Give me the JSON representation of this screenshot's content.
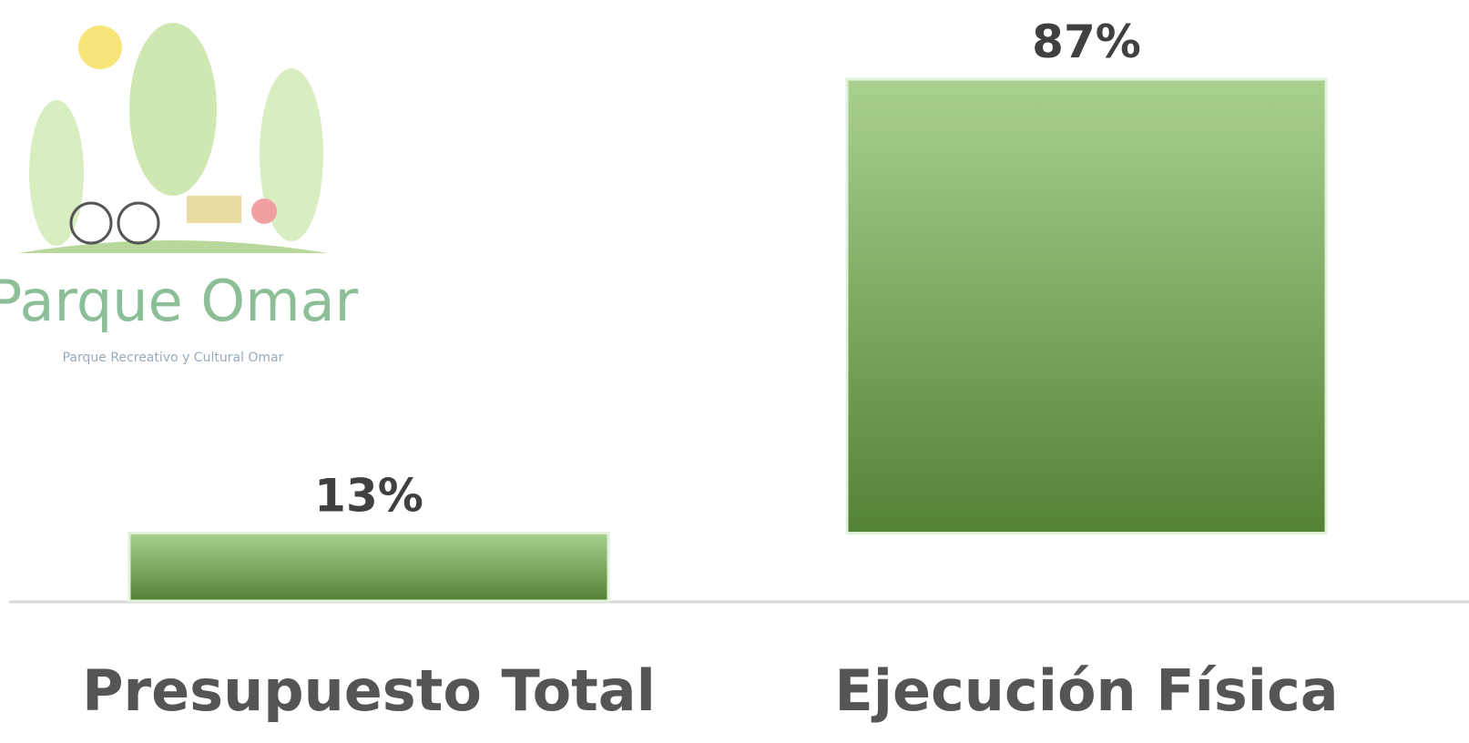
{
  "logo": {
    "title": "Parque Omar",
    "subtitle": "Parque Recreativo y Cultural Omar"
  },
  "chart_data": {
    "type": "waterfall",
    "categories": [
      "Presupuesto Total",
      "Ejecución Física"
    ],
    "values": [
      13,
      87
    ],
    "value_labels": [
      "13%",
      "87%"
    ],
    "ylim": [
      0,
      100
    ],
    "colors": [
      "#a9d18e",
      "#548235"
    ]
  }
}
